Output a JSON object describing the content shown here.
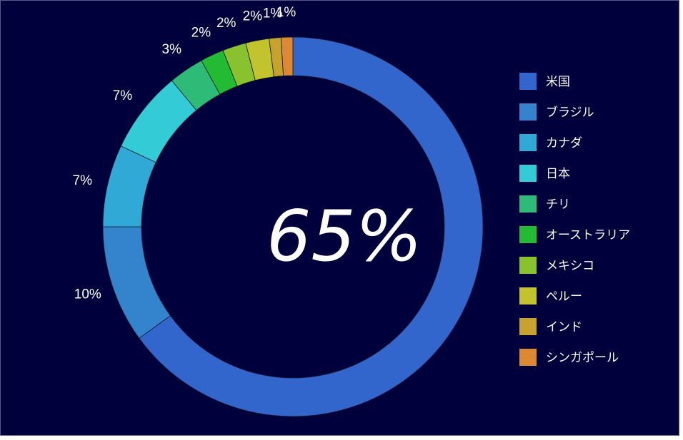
{
  "chart_data": {
    "type": "pie",
    "variant": "donut",
    "categories": [
      "米国",
      "ブラジル",
      "カナダ",
      "日本",
      "チリ",
      "オーストラリア",
      "メキシコ",
      "ペルー",
      "インド",
      "シンガポール"
    ],
    "values": [
      65,
      10,
      7,
      7,
      3,
      2,
      2,
      2,
      1,
      1
    ],
    "labels": [
      "65%",
      "10%",
      "7%",
      "7%",
      "3%",
      "2%",
      "2%",
      "2%",
      "1%",
      "1%"
    ],
    "colors": [
      "#3366cc",
      "#3384cc",
      "#31a9d6",
      "#33ccd6",
      "#2dbb77",
      "#22bb33",
      "#88c22e",
      "#c3c32e",
      "#c8a22e",
      "#dd8833"
    ],
    "center_label": "65%",
    "legend_position": "right",
    "title": ""
  }
}
